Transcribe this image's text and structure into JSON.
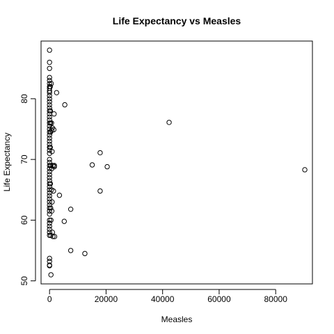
{
  "chart_data": {
    "type": "scatter",
    "title": "Life Expectancy vs  Measles",
    "xlabel": "Measles",
    "ylabel": "Life Expectancy",
    "xlim": [
      -3000,
      93000
    ],
    "ylim": [
      49.5,
      89.5
    ],
    "xticks": [
      0,
      20000,
      40000,
      60000,
      80000
    ],
    "xtick_labels": [
      "0",
      "20000",
      "40000",
      "60000",
      "80000"
    ],
    "yticks": [
      50,
      60,
      70,
      80
    ],
    "yticks_labels": [
      "50",
      "60",
      "70",
      "80"
    ],
    "grid": false,
    "legend": "none",
    "marker": "open-circle",
    "point_color": "#000000",
    "points": [
      {
        "x": 0,
        "y": 88.0
      },
      {
        "x": 0,
        "y": 86.0
      },
      {
        "x": 0,
        "y": 85.0
      },
      {
        "x": 0,
        "y": 83.5
      },
      {
        "x": 0,
        "y": 83.0
      },
      {
        "x": 0,
        "y": 82.5
      },
      {
        "x": 0,
        "y": 82.0
      },
      {
        "x": 0,
        "y": 81.7
      },
      {
        "x": 0,
        "y": 81.3
      },
      {
        "x": 0,
        "y": 81.0
      },
      {
        "x": 0,
        "y": 80.5
      },
      {
        "x": 0,
        "y": 80.0
      },
      {
        "x": 0,
        "y": 79.5
      },
      {
        "x": 0,
        "y": 79.0
      },
      {
        "x": 0,
        "y": 78.5
      },
      {
        "x": 0,
        "y": 78.0
      },
      {
        "x": 0,
        "y": 77.5
      },
      {
        "x": 0,
        "y": 77.0
      },
      {
        "x": 0,
        "y": 76.5
      },
      {
        "x": 0,
        "y": 76.0
      },
      {
        "x": 0,
        "y": 75.5
      },
      {
        "x": 0,
        "y": 75.0
      },
      {
        "x": 0,
        "y": 74.5
      },
      {
        "x": 0,
        "y": 74.0
      },
      {
        "x": 0,
        "y": 73.5
      },
      {
        "x": 0,
        "y": 73.0
      },
      {
        "x": 0,
        "y": 72.5
      },
      {
        "x": 0,
        "y": 72.0
      },
      {
        "x": 0,
        "y": 71.5
      },
      {
        "x": 0,
        "y": 71.0
      },
      {
        "x": 0,
        "y": 70.0
      },
      {
        "x": 0,
        "y": 69.5
      },
      {
        "x": 0,
        "y": 69.0
      },
      {
        "x": 0,
        "y": 68.5
      },
      {
        "x": 0,
        "y": 68.0
      },
      {
        "x": 0,
        "y": 67.5
      },
      {
        "x": 0,
        "y": 67.0
      },
      {
        "x": 0,
        "y": 66.5
      },
      {
        "x": 0,
        "y": 66.0
      },
      {
        "x": 0,
        "y": 65.5
      },
      {
        "x": 0,
        "y": 65.0
      },
      {
        "x": 0,
        "y": 64.5
      },
      {
        "x": 0,
        "y": 64.0
      },
      {
        "x": 0,
        "y": 63.5
      },
      {
        "x": 0,
        "y": 63.0
      },
      {
        "x": 0,
        "y": 62.5
      },
      {
        "x": 0,
        "y": 62.0
      },
      {
        "x": 0,
        "y": 61.5
      },
      {
        "x": 0,
        "y": 61.0
      },
      {
        "x": 0,
        "y": 60.0
      },
      {
        "x": 0,
        "y": 59.5
      },
      {
        "x": 0,
        "y": 59.0
      },
      {
        "x": 0,
        "y": 58.5
      },
      {
        "x": 0,
        "y": 58.0
      },
      {
        "x": 0,
        "y": 57.5
      },
      {
        "x": 0,
        "y": 53.7
      },
      {
        "x": 0,
        "y": 53.2
      },
      {
        "x": 0,
        "y": 52.6
      },
      {
        "x": 0,
        "y": 52.5
      },
      {
        "x": 250,
        "y": 82.0
      },
      {
        "x": 300,
        "y": 78.0
      },
      {
        "x": 300,
        "y": 76.0
      },
      {
        "x": 350,
        "y": 74.5
      },
      {
        "x": 250,
        "y": 72.0
      },
      {
        "x": 400,
        "y": 69.0
      },
      {
        "x": 300,
        "y": 66.0
      },
      {
        "x": 400,
        "y": 62.0
      },
      {
        "x": 500,
        "y": 60.0
      },
      {
        "x": 450,
        "y": 57.5
      },
      {
        "x": 500,
        "y": 51.0
      },
      {
        "x": 600,
        "y": 82.5
      },
      {
        "x": 700,
        "y": 76.0
      },
      {
        "x": 800,
        "y": 74.8
      },
      {
        "x": 900,
        "y": 71.3
      },
      {
        "x": 800,
        "y": 68.5
      },
      {
        "x": 700,
        "y": 65.0
      },
      {
        "x": 900,
        "y": 63.0
      },
      {
        "x": 800,
        "y": 61.5
      },
      {
        "x": 1000,
        "y": 58.0
      },
      {
        "x": 1200,
        "y": 57.3
      },
      {
        "x": 1000,
        "y": 75.2
      },
      {
        "x": 1200,
        "y": 69.0
      },
      {
        "x": 1500,
        "y": 74.9
      },
      {
        "x": 1600,
        "y": 77.5
      },
      {
        "x": 1700,
        "y": 69.0
      },
      {
        "x": 1400,
        "y": 64.8
      },
      {
        "x": 1800,
        "y": 57.3
      },
      {
        "x": 1700,
        "y": 68.8
      },
      {
        "x": 2500,
        "y": 81.0
      },
      {
        "x": 3500,
        "y": 64.1
      },
      {
        "x": 5400,
        "y": 79.0
      },
      {
        "x": 5200,
        "y": 59.8
      },
      {
        "x": 7500,
        "y": 61.8
      },
      {
        "x": 7500,
        "y": 55.0
      },
      {
        "x": 12500,
        "y": 54.5
      },
      {
        "x": 15100,
        "y": 69.1
      },
      {
        "x": 17900,
        "y": 71.1
      },
      {
        "x": 17900,
        "y": 64.8
      },
      {
        "x": 20400,
        "y": 68.8
      },
      {
        "x": 42300,
        "y": 76.1
      },
      {
        "x": 90300,
        "y": 68.3
      }
    ]
  }
}
